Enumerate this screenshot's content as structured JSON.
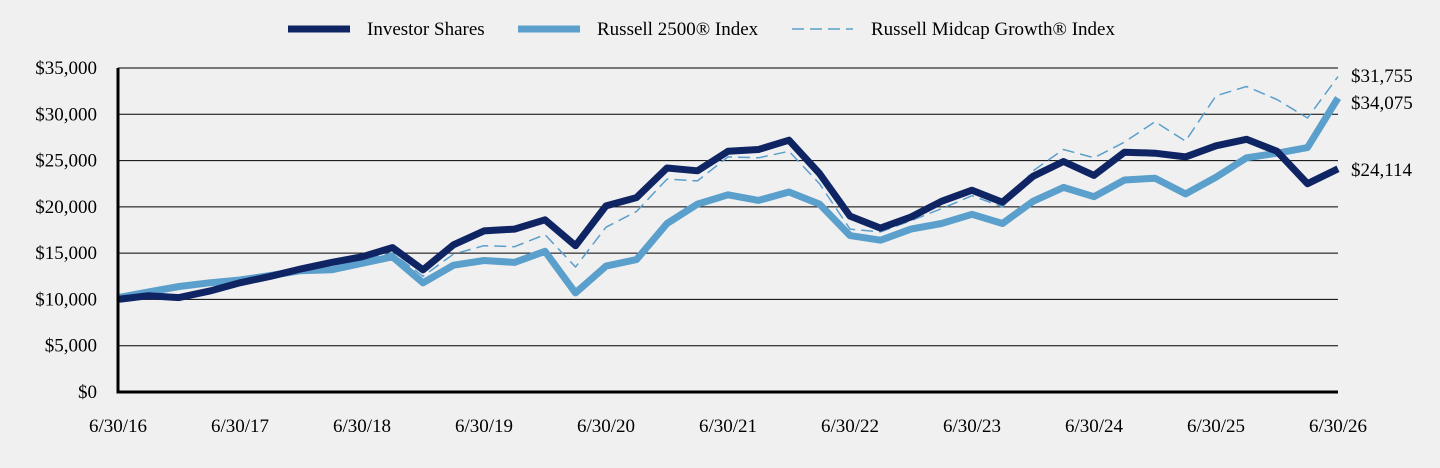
{
  "chart_data": {
    "type": "line",
    "x_tick_labels": [
      "6/30/16",
      "6/30/17",
      "6/30/18",
      "6/30/19",
      "6/30/20",
      "6/30/21",
      "6/30/22",
      "6/30/23",
      "6/30/24",
      "6/30/25",
      "6/30/26"
    ],
    "y_tick_labels": [
      "$0",
      "$5,000",
      "$10,000",
      "$15,000",
      "$20,000",
      "$25,000",
      "$30,000",
      "$35,000"
    ],
    "ylim": [
      0,
      35000
    ],
    "grid": "horizontal",
    "legend_placement": "top",
    "series": [
      {
        "name": "Investor Shares",
        "color": "#0f2463",
        "style": "solid-thick",
        "end_label": "$24,114",
        "values": [
          10000,
          10400,
          10200,
          10900,
          11800,
          12500,
          13300,
          14000,
          14600,
          15600,
          13200,
          15900,
          17400,
          17600,
          18600,
          15800,
          20100,
          21000,
          24200,
          23900,
          26000,
          26200,
          27200,
          23600,
          19000,
          17700,
          18900,
          20600,
          21800,
          20500,
          23300,
          24900,
          23400,
          25900,
          25800,
          25400,
          26600,
          27300,
          26000,
          22500,
          24114
        ]
      },
      {
        "name": "Russell 2500® Index",
        "color": "#5b9fcc",
        "style": "solid-thick",
        "end_label": "$31,755",
        "values": [
          10200,
          10800,
          11400,
          11800,
          12100,
          12600,
          13100,
          13200,
          13900,
          14600,
          11800,
          13700,
          14200,
          14000,
          15200,
          10700,
          13600,
          14300,
          18200,
          20300,
          21300,
          20700,
          21600,
          20300,
          16900,
          16400,
          17600,
          18200,
          19200,
          18200,
          20600,
          22100,
          21100,
          22900,
          23100,
          21400,
          23200,
          25300,
          25800,
          26400,
          31755
        ]
      },
      {
        "name": "Russell Midcap Growth® Index",
        "color": "#5b9fcc",
        "style": "dashed-thin",
        "end_label": "$34,075",
        "values": [
          10300,
          10700,
          11300,
          11800,
          12100,
          12700,
          13300,
          13700,
          14300,
          15000,
          12500,
          14900,
          15800,
          15700,
          17000,
          13500,
          17800,
          19500,
          23000,
          22800,
          25400,
          25300,
          26000,
          22500,
          17600,
          17300,
          18500,
          19800,
          21200,
          20000,
          23900,
          26200,
          25300,
          27000,
          29200,
          27100,
          32000,
          33000,
          31600,
          29600,
          34075
        ]
      }
    ]
  }
}
